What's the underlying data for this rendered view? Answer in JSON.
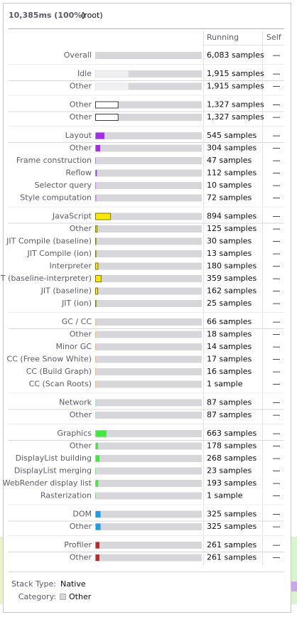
{
  "header": {
    "duration": "10,385ms (100%)",
    "name": "(root)"
  },
  "columns": {
    "running": "Running",
    "self": "Self"
  },
  "overall": {
    "label": "Overall",
    "samples": 6083,
    "samples_label": "6,083 samples",
    "self": "—",
    "color": "#d7d7db"
  },
  "categories": [
    {
      "label": "Idle",
      "samples": 1915,
      "samples_label": "1,915 samples",
      "self": "—",
      "color": "#f0f0f2",
      "subcategories": [
        {
          "label": "Other",
          "samples": 1915,
          "samples_label": "1,915 samples",
          "self": "—"
        }
      ]
    },
    {
      "label": "Other",
      "samples": 1327,
      "samples_label": "1,327 samples",
      "self": "—",
      "color": "#ffffff",
      "border": "#38383d",
      "subcategories": [
        {
          "label": "Other",
          "samples": 1327,
          "samples_label": "1,327 samples",
          "self": "—"
        }
      ]
    },
    {
      "label": "Layout",
      "samples": 545,
      "samples_label": "545 samples",
      "self": "—",
      "color": "#9f2fe8",
      "subcategories": [
        {
          "label": "Other",
          "samples": 304,
          "samples_label": "304 samples",
          "self": "—"
        },
        {
          "label": "Frame construction",
          "samples": 47,
          "samples_label": "47 samples",
          "self": "—"
        },
        {
          "label": "Reflow",
          "samples": 112,
          "samples_label": "112 samples",
          "self": "—"
        },
        {
          "label": "Selector query",
          "samples": 10,
          "samples_label": "10 samples",
          "self": "—"
        },
        {
          "label": "Style computation",
          "samples": 72,
          "samples_label": "72 samples",
          "self": "—"
        }
      ]
    },
    {
      "label": "JavaScript",
      "samples": 894,
      "samples_label": "894 samples",
      "self": "—",
      "color": "#ffe900",
      "border": "#7a7a00",
      "subcategories": [
        {
          "label": "Other",
          "samples": 125,
          "samples_label": "125 samples",
          "self": "—"
        },
        {
          "label": "JIT Compile (baseline)",
          "samples": 30,
          "samples_label": "30 samples",
          "self": "—"
        },
        {
          "label": "JIT Compile (ion)",
          "samples": 13,
          "samples_label": "13 samples",
          "self": "—"
        },
        {
          "label": "Interpreter",
          "samples": 180,
          "samples_label": "180 samples",
          "self": "—"
        },
        {
          "label": "JIT (baseline-interpreter)",
          "samples": 359,
          "samples_label": "359 samples",
          "self": "—"
        },
        {
          "label": "JIT (baseline)",
          "samples": 162,
          "samples_label": "162 samples",
          "self": "—"
        },
        {
          "label": "JIT (ion)",
          "samples": 25,
          "samples_label": "25 samples",
          "self": "—"
        }
      ]
    },
    {
      "label": "GC / CC",
      "samples": 66,
      "samples_label": "66 samples",
      "self": "—",
      "color": "#ffa436",
      "subcategories": [
        {
          "label": "Other",
          "samples": 18,
          "samples_label": "18 samples",
          "self": "—"
        },
        {
          "label": "Minor GC",
          "samples": 14,
          "samples_label": "14 samples",
          "self": "—"
        },
        {
          "label": "CC (Free Snow White)",
          "samples": 17,
          "samples_label": "17 samples",
          "self": "—"
        },
        {
          "label": "CC (Build Graph)",
          "samples": 16,
          "samples_label": "16 samples",
          "self": "—"
        },
        {
          "label": "CC (Scan Roots)",
          "samples": 1,
          "samples_label": "1 sample",
          "self": "—"
        }
      ]
    },
    {
      "label": "Network",
      "samples": 87,
      "samples_label": "87 samples",
      "self": "—",
      "color": "#8ae6f5",
      "subcategories": [
        {
          "label": "Other",
          "samples": 87,
          "samples_label": "87 samples",
          "self": "—"
        }
      ]
    },
    {
      "label": "Graphics",
      "samples": 663,
      "samples_label": "663 samples",
      "self": "—",
      "color": "#3ceb3c",
      "subcategories": [
        {
          "label": "Other",
          "samples": 178,
          "samples_label": "178 samples",
          "self": "—"
        },
        {
          "label": "DisplayList building",
          "samples": 268,
          "samples_label": "268 samples",
          "self": "—"
        },
        {
          "label": "DisplayList merging",
          "samples": 23,
          "samples_label": "23 samples",
          "self": "—"
        },
        {
          "label": "WebRender display list",
          "samples": 193,
          "samples_label": "193 samples",
          "self": "—"
        },
        {
          "label": "Rasterization",
          "samples": 1,
          "samples_label": "1 sample",
          "self": "—"
        }
      ]
    },
    {
      "label": "DOM",
      "samples": 325,
      "samples_label": "325 samples",
      "self": "—",
      "color": "#1a9fe8",
      "subcategories": [
        {
          "label": "Other",
          "samples": 325,
          "samples_label": "325 samples",
          "self": "—"
        }
      ]
    },
    {
      "label": "Profiler",
      "samples": 261,
      "samples_label": "261 samples",
      "self": "—",
      "color": "#c1272d",
      "subcategories": [
        {
          "label": "Other",
          "samples": 261,
          "samples_label": "261 samples",
          "self": "—"
        }
      ]
    }
  ],
  "footer": {
    "stack_type_label": "Stack Type:",
    "stack_type": "Native",
    "category_label": "Category:",
    "category": "Other"
  }
}
